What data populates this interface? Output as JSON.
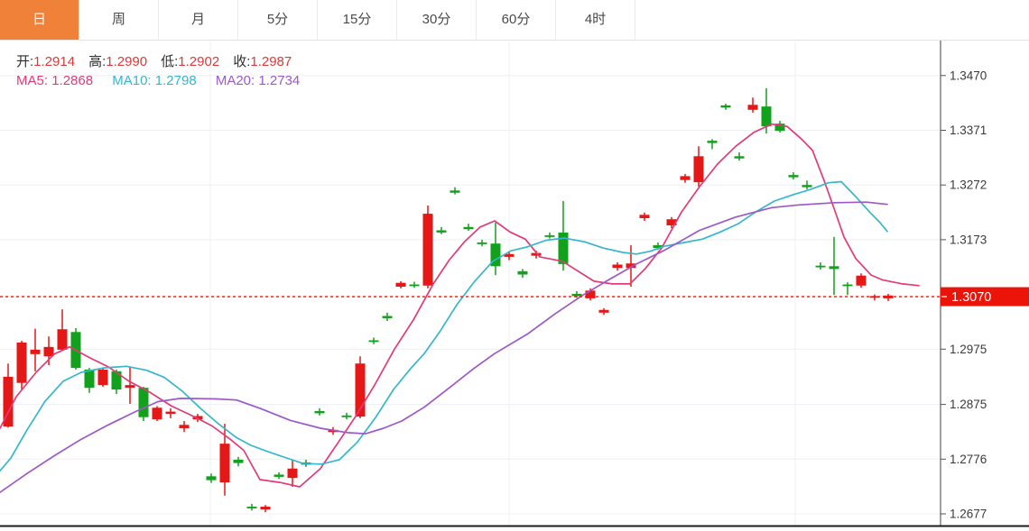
{
  "tabs": [
    {
      "label": "日",
      "active": true
    },
    {
      "label": "周",
      "active": false
    },
    {
      "label": "月",
      "active": false
    },
    {
      "label": "5分",
      "active": false
    },
    {
      "label": "15分",
      "active": false
    },
    {
      "label": "30分",
      "active": false
    },
    {
      "label": "60分",
      "active": false
    },
    {
      "label": "4时",
      "active": false
    }
  ],
  "ohlc": {
    "o_label": "开:",
    "o": "1.2914",
    "h_label": "高:",
    "h": "1.2990",
    "l_label": "低:",
    "l": "1.2902",
    "c_label": "收:",
    "c": "1.2987"
  },
  "ma_legend": {
    "ma5_label": "MA5:",
    "ma5": "1.2868",
    "ma10_label": "MA10:",
    "ma10": "1.2798",
    "ma20_label": "MA20:",
    "ma20": "1.2734"
  },
  "colors": {
    "up": "#e51717",
    "down": "#12a11c",
    "ma5": "#e23a78",
    "ma10": "#36b6cc",
    "ma20": "#9b59c8",
    "price_line": "#ec1409",
    "badge_text": "#ffffff",
    "ohlc_value": "#d93a3a",
    "label_text": "#2e2e2e",
    "tab_active_bg": "#ef8138",
    "axis_text": "#3a3a3a",
    "grid": "#ecf0f4",
    "axis_line": "#3f3f3f",
    "bottom_line": "#1b1b1b"
  },
  "chart_data": {
    "type": "candlestick",
    "title": "",
    "legend": [
      "MA5",
      "MA10",
      "MA20"
    ],
    "y_axis_labels": [
      {
        "text": "1.3470",
        "price": 1.347
      },
      {
        "text": "1.3371",
        "price": 1.3371
      },
      {
        "text": "1.3272",
        "price": 1.3272
      },
      {
        "text": "1.3173",
        "price": 1.3173
      },
      {
        "text": "1.2975",
        "price": 1.2975
      },
      {
        "text": "1.2875",
        "price": 1.2875
      },
      {
        "text": "1.2776",
        "price": 1.2776
      },
      {
        "text": "1.2677",
        "price": 1.2677
      }
    ],
    "h_gridline_prices": [
      1.347,
      1.3371,
      1.3272,
      1.3173,
      1.2975,
      1.2875,
      1.2776,
      1.2677
    ],
    "v_gridlines_x": [
      233,
      564,
      881
    ],
    "price_line": {
      "price": 1.307,
      "label": "1.3070"
    },
    "ylim": [
      1.264,
      1.352
    ],
    "candles_format": [
      "x_px",
      "open",
      "high",
      "low",
      "close"
    ],
    "candles": [
      [
        9,
        1.2835,
        1.2949,
        1.2833,
        1.2925
      ],
      [
        24,
        1.2914,
        1.299,
        1.2902,
        1.2987
      ],
      [
        39,
        1.2966,
        1.3012,
        1.2935,
        1.2974
      ],
      [
        54,
        1.2962,
        1.2998,
        1.2946,
        1.2979
      ],
      [
        69,
        1.2974,
        1.3047,
        1.2972,
        1.3011
      ],
      [
        84,
        1.3006,
        1.3013,
        1.2938,
        1.2941
      ],
      [
        99,
        1.2938,
        1.2941,
        1.2896,
        1.2905
      ],
      [
        114,
        1.291,
        1.2941,
        1.2907,
        1.2938
      ],
      [
        129,
        1.2935,
        1.2938,
        1.2894,
        1.2902
      ],
      [
        144,
        1.2905,
        1.2943,
        1.2876,
        1.291
      ],
      [
        159,
        1.2905,
        1.2907,
        1.2845,
        1.2852
      ],
      [
        174,
        1.2848,
        1.2872,
        1.2845,
        1.2869
      ],
      [
        189,
        1.2858,
        1.2868,
        1.285,
        1.2862
      ],
      [
        204,
        1.2832,
        1.2845,
        1.2825,
        1.2838
      ],
      [
        219,
        1.2848,
        1.2858,
        1.2843,
        1.2854
      ],
      [
        234,
        1.2745,
        1.275,
        1.2733,
        1.2738
      ],
      [
        249,
        1.2734,
        1.284,
        1.271,
        1.2804
      ],
      [
        264,
        1.2775,
        1.278,
        1.2763,
        1.2769
      ],
      [
        279,
        1.269,
        1.2695,
        1.2683,
        1.2687
      ],
      [
        294,
        1.2685,
        1.2693,
        1.268,
        1.269
      ],
      [
        309,
        1.2748,
        1.2752,
        1.274,
        1.2744
      ],
      [
        324,
        1.2742,
        1.2775,
        1.2726,
        1.2759
      ],
      [
        339,
        1.277,
        1.2775,
        1.2762,
        1.2766
      ],
      [
        354,
        1.2863,
        1.2868,
        1.2855,
        1.2859
      ],
      [
        369,
        1.2825,
        1.2834,
        1.282,
        1.2829
      ],
      [
        384,
        1.2855,
        1.286,
        1.2848,
        1.2852
      ],
      [
        399,
        1.2853,
        1.2962,
        1.285,
        1.2949
      ],
      [
        414,
        1.2991,
        1.2996,
        1.2984,
        1.2988
      ],
      [
        429,
        1.3035,
        1.3041,
        1.3026,
        1.3031
      ],
      [
        444,
        1.3088,
        1.3098,
        1.3085,
        1.3095
      ],
      [
        459,
        1.3092,
        1.3097,
        1.3086,
        1.3089
      ],
      [
        474,
        1.309,
        1.3235,
        1.3085,
        1.322
      ],
      [
        489,
        1.319,
        1.3196,
        1.3183,
        1.3186
      ],
      [
        504,
        1.3262,
        1.3268,
        1.3255,
        1.3258
      ],
      [
        519,
        1.3196,
        1.3202,
        1.3189,
        1.3192
      ],
      [
        534,
        1.3168,
        1.3173,
        1.3161,
        1.3165
      ],
      [
        549,
        1.3166,
        1.3204,
        1.3109,
        1.3125
      ],
      [
        564,
        1.3142,
        1.3152,
        1.3136,
        1.3147
      ],
      [
        579,
        1.3116,
        1.312,
        1.3104,
        1.311
      ],
      [
        594,
        1.3144,
        1.3153,
        1.3139,
        1.3149
      ],
      [
        609,
        1.3181,
        1.3186,
        1.3175,
        1.3178
      ],
      [
        624,
        1.3186,
        1.3243,
        1.3117,
        1.3129
      ],
      [
        639,
        1.3075,
        1.308,
        1.3068,
        1.3071
      ],
      [
        654,
        1.3067,
        1.3085,
        1.3063,
        1.3081
      ],
      [
        669,
        1.3041,
        1.3049,
        1.3037,
        1.3046
      ],
      [
        684,
        1.3122,
        1.3132,
        1.3117,
        1.3128
      ],
      [
        699,
        1.3122,
        1.3163,
        1.3088,
        1.313
      ],
      [
        714,
        1.3212,
        1.3222,
        1.3207,
        1.3218
      ],
      [
        729,
        1.3163,
        1.3168,
        1.3155,
        1.3158
      ],
      [
        744,
        1.3199,
        1.3214,
        1.3194,
        1.321
      ],
      [
        759,
        1.3281,
        1.3292,
        1.3276,
        1.3288
      ],
      [
        774,
        1.3277,
        1.3342,
        1.3269,
        1.3324
      ],
      [
        789,
        1.3352,
        1.3355,
        1.3337,
        1.3348
      ],
      [
        804,
        1.3416,
        1.3419,
        1.3408,
        1.3412
      ],
      [
        819,
        1.3324,
        1.3331,
        1.3316,
        1.332
      ],
      [
        834,
        1.3408,
        1.343,
        1.3403,
        1.3417
      ],
      [
        849,
        1.3414,
        1.3447,
        1.3365,
        1.3378
      ],
      [
        864,
        1.3383,
        1.3388,
        1.3367,
        1.337
      ],
      [
        879,
        1.329,
        1.3295,
        1.3282,
        1.3286
      ],
      [
        894,
        1.3272,
        1.328,
        1.3264,
        1.3268
      ],
      [
        909,
        1.3126,
        1.3132,
        1.3119,
        1.3123
      ],
      [
        924,
        1.3125,
        1.3178,
        1.3073,
        1.312
      ],
      [
        939,
        1.3092,
        1.3096,
        1.3073,
        1.3089
      ],
      [
        954,
        1.309,
        1.3112,
        1.3086,
        1.3108
      ],
      [
        969,
        1.3068,
        1.3074,
        1.3063,
        1.3071
      ],
      [
        984,
        1.3067,
        1.3075,
        1.3062,
        1.3072
      ]
    ],
    "ma_lines": [
      {
        "name": "MA5",
        "color_key": "ma5",
        "points": [
          [
            0,
            1.2832
          ],
          [
            18,
            1.2889
          ],
          [
            40,
            1.2933
          ],
          [
            60,
            1.2966
          ],
          [
            77,
            1.2979
          ],
          [
            100,
            1.2959
          ],
          [
            120,
            1.2943
          ],
          [
            143,
            1.2917
          ],
          [
            165,
            1.2898
          ],
          [
            190,
            1.2872
          ],
          [
            215,
            1.2853
          ],
          [
            235,
            1.2836
          ],
          [
            255,
            1.2812
          ],
          [
            270,
            1.2792
          ],
          [
            288,
            1.2739
          ],
          [
            310,
            1.2734
          ],
          [
            332,
            1.2726
          ],
          [
            355,
            1.2759
          ],
          [
            375,
            1.2807
          ],
          [
            395,
            1.2856
          ],
          [
            415,
            1.291
          ],
          [
            437,
            1.2975
          ],
          [
            458,
            1.3028
          ],
          [
            480,
            1.3093
          ],
          [
            498,
            1.3137
          ],
          [
            515,
            1.317
          ],
          [
            532,
            1.3196
          ],
          [
            548,
            1.3207
          ],
          [
            565,
            1.3187
          ],
          [
            582,
            1.3174
          ],
          [
            598,
            1.3142
          ],
          [
            623,
            1.3134
          ],
          [
            658,
            1.3098
          ],
          [
            678,
            1.3093
          ],
          [
            698,
            1.3093
          ],
          [
            715,
            1.3121
          ],
          [
            733,
            1.3158
          ],
          [
            755,
            1.3223
          ],
          [
            775,
            1.3269
          ],
          [
            795,
            1.331
          ],
          [
            815,
            1.3342
          ],
          [
            835,
            1.3367
          ],
          [
            855,
            1.3382
          ],
          [
            872,
            1.3378
          ],
          [
            888,
            1.3355
          ],
          [
            900,
            1.3335
          ],
          [
            913,
            1.328
          ],
          [
            925,
            1.3225
          ],
          [
            935,
            1.3178
          ],
          [
            948,
            1.3139
          ],
          [
            965,
            1.3109
          ],
          [
            978,
            1.31
          ],
          [
            1000,
            1.3093
          ],
          [
            1018,
            1.309
          ]
        ]
      },
      {
        "name": "MA10",
        "color_key": "ma10",
        "points": [
          [
            0,
            1.2755
          ],
          [
            12,
            1.2778
          ],
          [
            30,
            1.2829
          ],
          [
            50,
            1.2881
          ],
          [
            70,
            1.2917
          ],
          [
            90,
            1.2933
          ],
          [
            115,
            1.2941
          ],
          [
            140,
            1.2944
          ],
          [
            162,
            1.2937
          ],
          [
            182,
            1.2924
          ],
          [
            202,
            1.2899
          ],
          [
            222,
            1.2868
          ],
          [
            242,
            1.284
          ],
          [
            262,
            1.2815
          ],
          [
            278,
            1.2801
          ],
          [
            296,
            1.279
          ],
          [
            316,
            1.2779
          ],
          [
            336,
            1.2768
          ],
          [
            356,
            1.2767
          ],
          [
            376,
            1.2775
          ],
          [
            396,
            1.2807
          ],
          [
            416,
            1.2851
          ],
          [
            436,
            1.2902
          ],
          [
            455,
            1.294
          ],
          [
            470,
            1.2967
          ],
          [
            487,
            1.3006
          ],
          [
            506,
            1.3055
          ],
          [
            526,
            1.3098
          ],
          [
            546,
            1.3134
          ],
          [
            566,
            1.3153
          ],
          [
            584,
            1.316
          ],
          [
            605,
            1.3172
          ],
          [
            625,
            1.3176
          ],
          [
            648,
            1.3169
          ],
          [
            668,
            1.3158
          ],
          [
            690,
            1.315
          ],
          [
            705,
            1.3147
          ],
          [
            720,
            1.3152
          ],
          [
            736,
            1.3161
          ],
          [
            758,
            1.3168
          ],
          [
            778,
            1.3174
          ],
          [
            798,
            1.3187
          ],
          [
            818,
            1.3202
          ],
          [
            838,
            1.3224
          ],
          [
            858,
            1.3243
          ],
          [
            878,
            1.3254
          ],
          [
            898,
            1.3264
          ],
          [
            918,
            1.3276
          ],
          [
            932,
            1.3278
          ],
          [
            948,
            1.3251
          ],
          [
            964,
            1.3222
          ],
          [
            975,
            1.3204
          ],
          [
            983,
            1.3188
          ]
        ]
      },
      {
        "name": "MA20",
        "color_key": "ma20",
        "points": [
          [
            0,
            1.2716
          ],
          [
            30,
            1.275
          ],
          [
            60,
            1.2782
          ],
          [
            90,
            1.2812
          ],
          [
            120,
            1.2838
          ],
          [
            150,
            1.2862
          ],
          [
            175,
            1.288
          ],
          [
            200,
            1.2886
          ],
          [
            240,
            1.2885
          ],
          [
            262,
            1.2883
          ],
          [
            288,
            1.2868
          ],
          [
            322,
            1.2846
          ],
          [
            355,
            1.2832
          ],
          [
            385,
            1.2824
          ],
          [
            405,
            1.2822
          ],
          [
            425,
            1.2832
          ],
          [
            445,
            1.2845
          ],
          [
            470,
            1.287
          ],
          [
            500,
            1.2908
          ],
          [
            525,
            1.294
          ],
          [
            548,
            1.2967
          ],
          [
            585,
            1.3003
          ],
          [
            615,
            1.3039
          ],
          [
            645,
            1.3072
          ],
          [
            675,
            1.3101
          ],
          [
            705,
            1.3129
          ],
          [
            735,
            1.3153
          ],
          [
            775,
            1.319
          ],
          [
            815,
            1.3214
          ],
          [
            855,
            1.3231
          ],
          [
            885,
            1.3236
          ],
          [
            925,
            1.324
          ],
          [
            960,
            1.3241
          ],
          [
            983,
            1.3237
          ]
        ]
      }
    ]
  }
}
